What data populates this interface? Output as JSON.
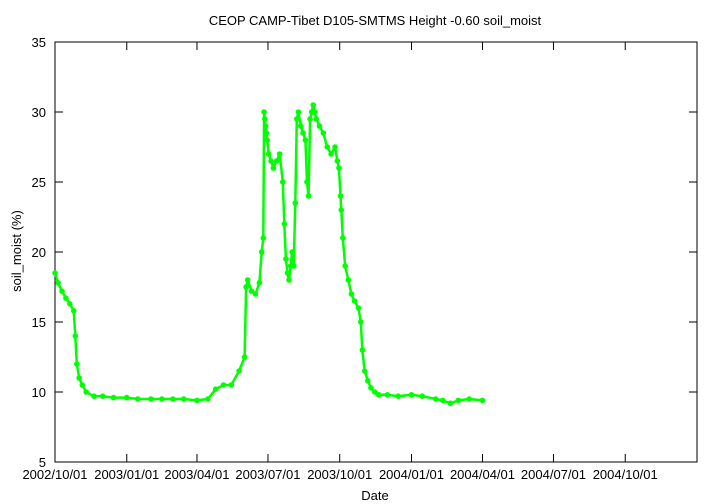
{
  "chart_data": {
    "type": "scatter",
    "title": "CEOP CAMP-Tibet D105-SMTMS Height -0.60 soil_moist",
    "xlabel": "Date",
    "ylabel": "soil_moist (%)",
    "xlim": [
      "2002-10-01",
      "2005-01-01"
    ],
    "ylim": [
      5,
      35
    ],
    "x_ticks": [
      "2002/10/01",
      "2003/01/01",
      "2003/04/01",
      "2003/07/01",
      "2003/10/01",
      "2004/01/01",
      "2004/04/01",
      "2004/07/01",
      "2004/10/01"
    ],
    "y_ticks": [
      5,
      10,
      15,
      20,
      25,
      30,
      35
    ],
    "grid": false,
    "legend": "none",
    "series_color": "#00ff00",
    "series": [
      {
        "x": [
          "2002-10-01",
          "2002-10-05",
          "2002-10-10",
          "2002-10-15",
          "2002-10-20",
          "2002-10-25",
          "2002-10-27",
          "2002-10-29",
          "2002-11-01",
          "2002-11-05",
          "2002-11-10",
          "2002-11-20",
          "2002-12-01",
          "2002-12-15",
          "2003-01-01",
          "2003-01-15",
          "2003-02-01",
          "2003-02-15",
          "2003-03-01",
          "2003-03-15",
          "2003-04-01",
          "2003-04-15",
          "2003-04-25",
          "2003-05-05",
          "2003-05-15",
          "2003-05-25",
          "2003-06-01",
          "2003-06-03",
          "2003-06-05",
          "2003-06-10",
          "2003-06-15",
          "2003-06-20",
          "2003-06-23",
          "2003-06-25",
          "2003-06-26",
          "2003-06-27",
          "2003-06-28",
          "2003-06-29",
          "2003-06-30",
          "2003-07-02",
          "2003-07-05",
          "2003-07-08",
          "2003-07-12",
          "2003-07-16",
          "2003-07-20",
          "2003-07-22",
          "2003-07-24",
          "2003-07-26",
          "2003-07-28",
          "2003-07-30",
          "2003-08-01",
          "2003-08-03",
          "2003-08-05",
          "2003-08-07",
          "2003-08-09",
          "2003-08-12",
          "2003-08-15",
          "2003-08-18",
          "2003-08-20",
          "2003-08-22",
          "2003-08-24",
          "2003-08-26",
          "2003-08-28",
          "2003-08-30",
          "2003-09-01",
          "2003-09-05",
          "2003-09-10",
          "2003-09-15",
          "2003-09-20",
          "2003-09-25",
          "2003-09-28",
          "2003-09-30",
          "2003-10-02",
          "2003-10-03",
          "2003-10-05",
          "2003-10-08",
          "2003-10-12",
          "2003-10-16",
          "2003-10-20",
          "2003-10-25",
          "2003-10-28",
          "2003-10-30",
          "2003-11-02",
          "2003-11-06",
          "2003-11-10",
          "2003-11-15",
          "2003-11-20",
          "2003-12-01",
          "2003-12-15",
          "2004-01-01",
          "2004-01-15",
          "2004-02-01",
          "2004-02-10",
          "2004-02-20",
          "2004-03-01",
          "2004-03-15",
          "2004-04-01"
        ],
        "y": [
          18.5,
          17.8,
          17.2,
          16.7,
          16.3,
          15.8,
          14.0,
          12.0,
          11.0,
          10.5,
          10.0,
          9.7,
          9.7,
          9.6,
          9.6,
          9.5,
          9.5,
          9.5,
          9.5,
          9.5,
          9.4,
          9.5,
          10.2,
          10.5,
          10.5,
          11.5,
          12.5,
          17.5,
          18.0,
          17.2,
          17.0,
          17.8,
          20.0,
          21.0,
          30.0,
          29.5,
          29.0,
          28.5,
          28.0,
          27.0,
          26.5,
          26.0,
          26.5,
          27.0,
          25.0,
          22.0,
          19.5,
          18.5,
          18.0,
          19.0,
          20.0,
          19.0,
          23.5,
          29.5,
          30.0,
          29.0,
          28.5,
          28.0,
          25.0,
          24.0,
          29.5,
          30.0,
          30.5,
          30.0,
          29.5,
          29.0,
          28.5,
          27.5,
          27.0,
          27.5,
          26.5,
          26.0,
          24.0,
          23.0,
          21.0,
          19.0,
          18.0,
          17.0,
          16.5,
          16.0,
          15.0,
          13.0,
          11.5,
          10.8,
          10.3,
          10.0,
          9.8,
          9.8,
          9.7,
          9.8,
          9.7,
          9.5,
          9.4,
          9.2,
          9.4,
          9.5,
          9.4
        ]
      }
    ]
  }
}
